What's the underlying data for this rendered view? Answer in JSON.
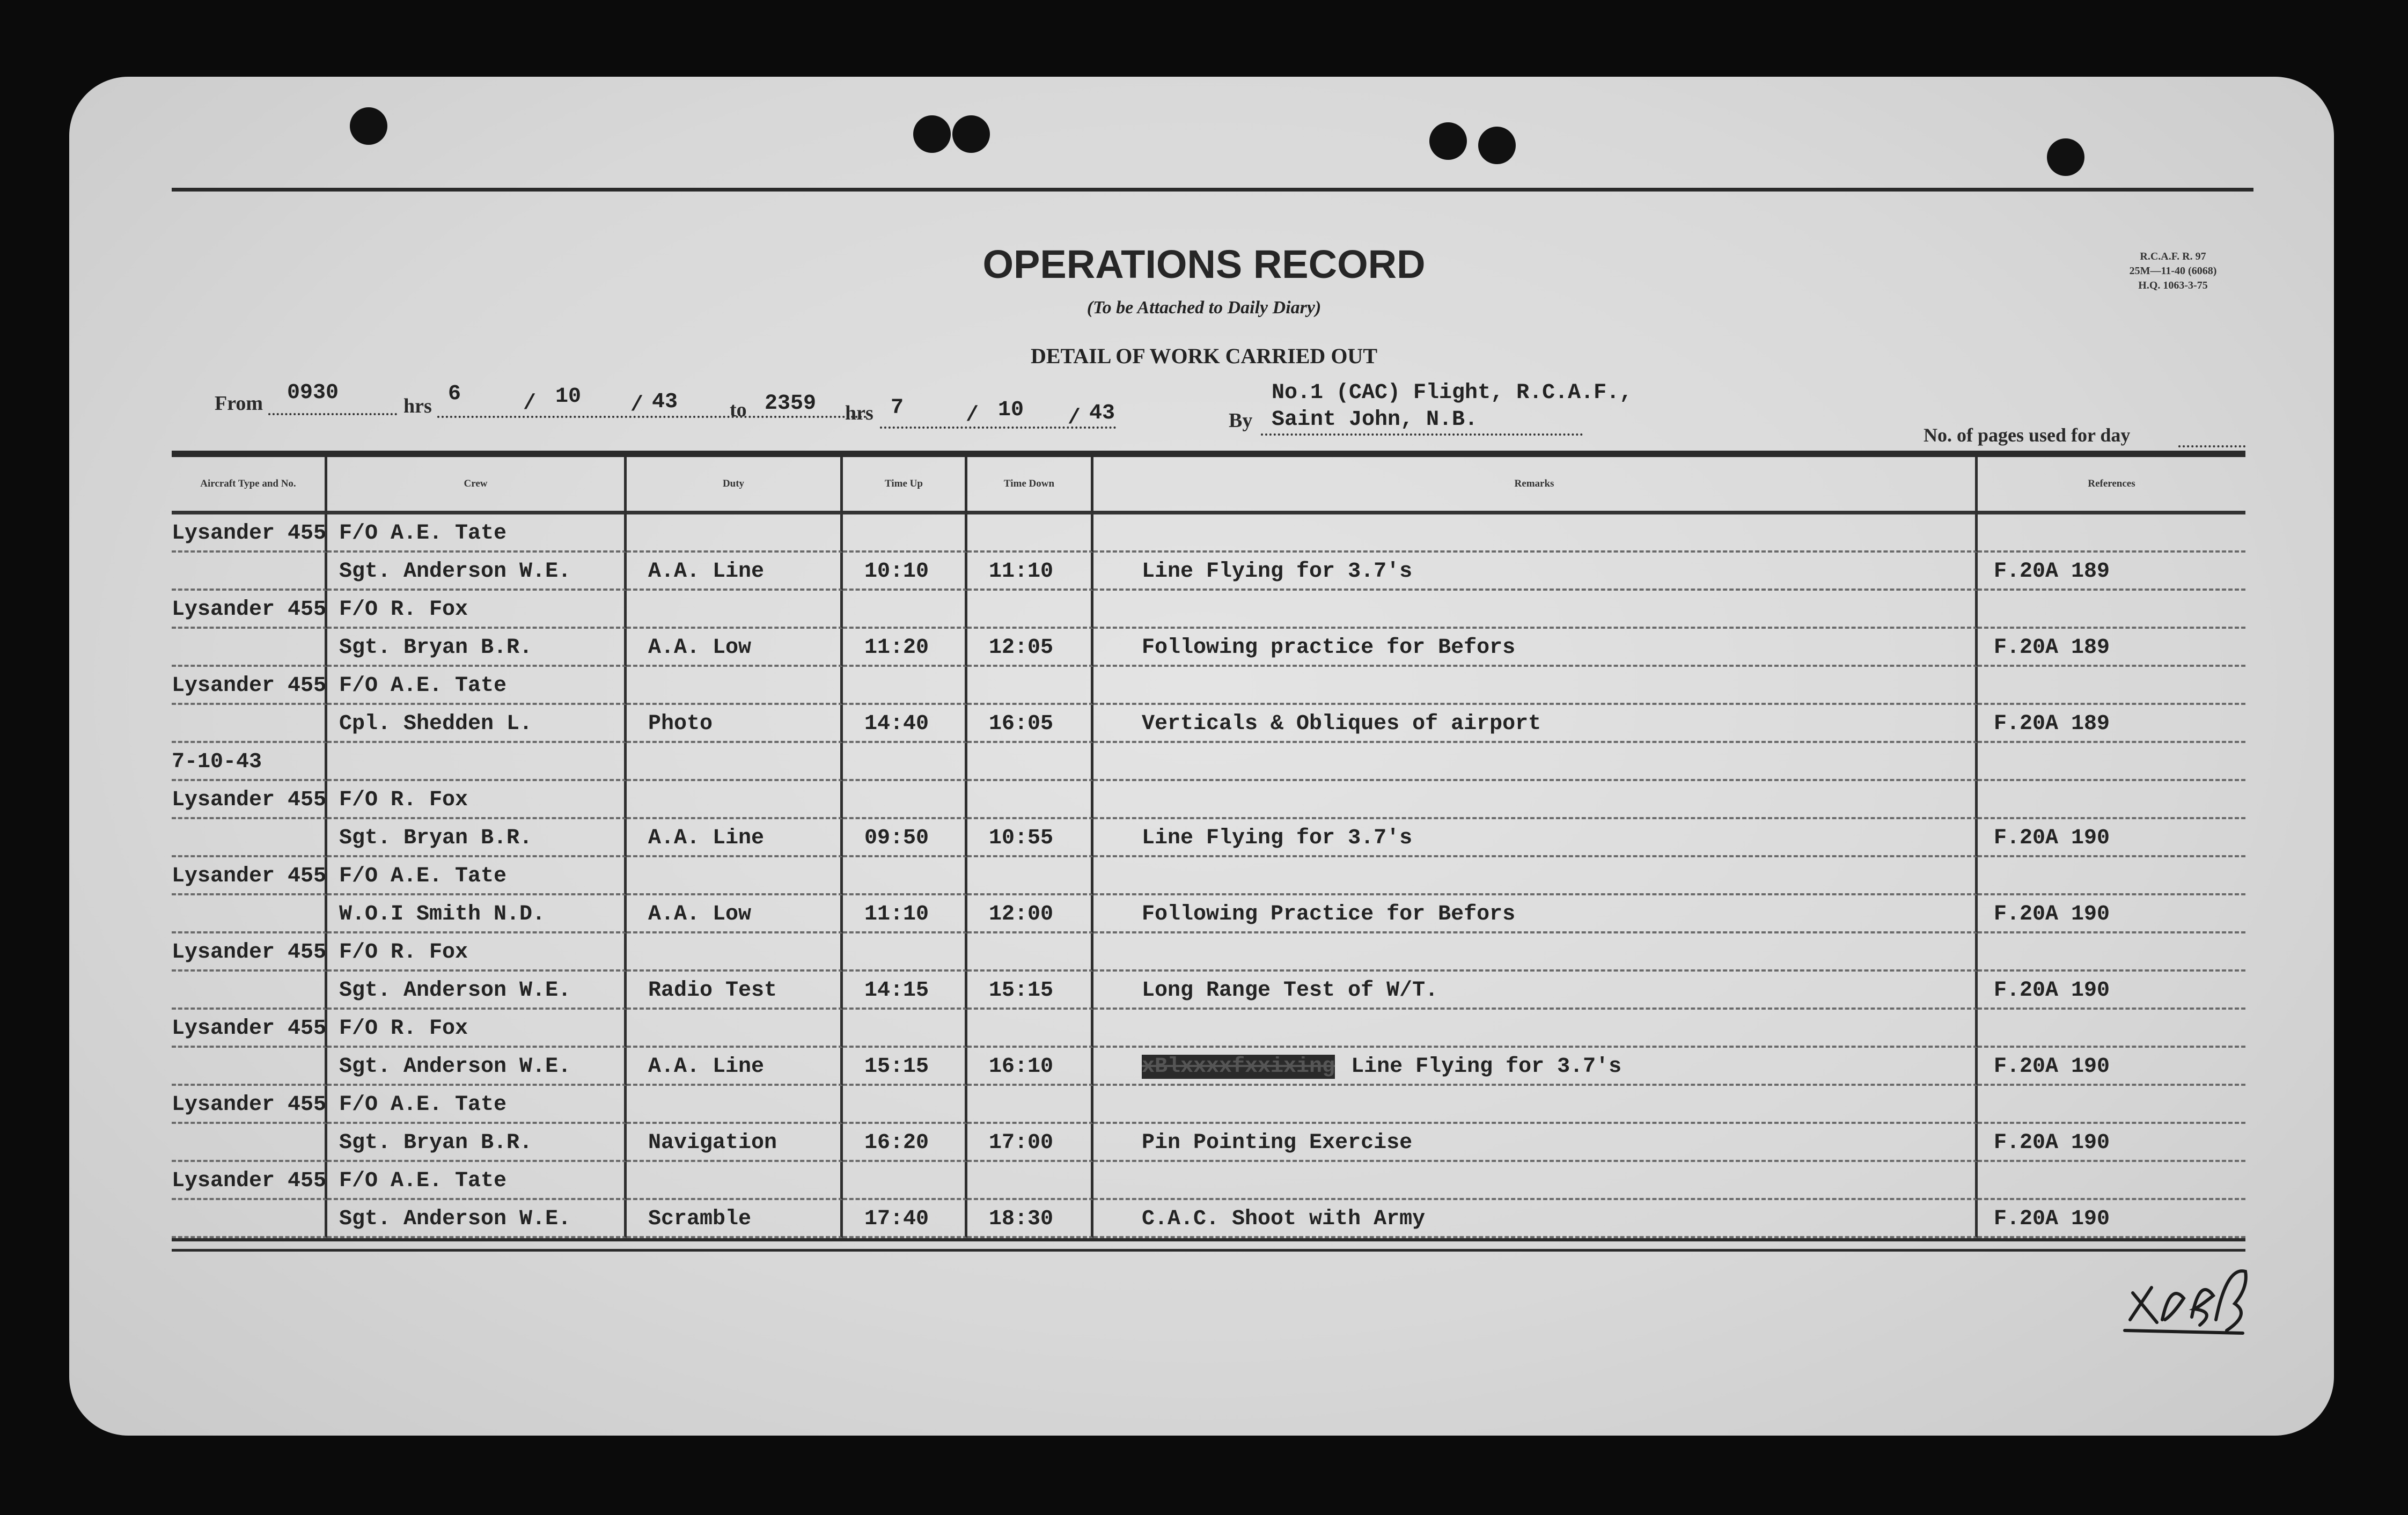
{
  "header": {
    "title": "OPERATIONS RECORD",
    "subtitle": "(To be Attached to Daily Diary)",
    "detail": "DETAIL OF WORK CARRIED OUT",
    "form_code": [
      "R.C.A.F. R. 97",
      "25M—11-40 (6068)",
      "H.Q. 1063-3-75"
    ],
    "from_label": "From",
    "from_time": "0930",
    "hrs_label": "hrs",
    "from_day": "6",
    "from_month": "10",
    "from_year": "43",
    "to_label": "to",
    "to_time": "2359",
    "to_day": "7",
    "to_month": "10",
    "to_year": "43",
    "unit": "No.1 (CAC) Flight, R.C.A.F.,",
    "by_label": "By",
    "by_value": "Saint John, N.B.",
    "pages_label": "No. of pages used for day"
  },
  "columns": [
    "Aircraft Type and No.",
    "Crew",
    "Duty",
    "Time Up",
    "Time Down",
    "Remarks",
    "References"
  ],
  "entries": [
    {
      "aircraft": "Lysander 455",
      "pilot": "F/O A.E. Tate",
      "crew": "Sgt. Anderson W.E.",
      "duty": "A.A. Line",
      "time_up": "10:10",
      "time_down": "11:10",
      "remarks": "Line Flying for 3.7's",
      "reference": "F.20A 189"
    },
    {
      "aircraft": "Lysander 455",
      "pilot": "F/O R. Fox",
      "crew": "Sgt. Bryan B.R.",
      "duty": "A.A. Low",
      "time_up": "11:20",
      "time_down": "12:05",
      "remarks": "Following practice for Befors",
      "reference": "F.20A 189"
    },
    {
      "aircraft": "Lysander 455",
      "pilot": "F/O A.E. Tate",
      "crew": "Cpl. Shedden L.",
      "duty": "Photo",
      "time_up": "14:40",
      "time_down": "16:05",
      "remarks": "Verticals & Obliques of airport",
      "reference": "F.20A 189"
    },
    {
      "date": "7-10-43"
    },
    {
      "aircraft": "Lysander 455",
      "pilot": "F/O R. Fox",
      "crew": "Sgt. Bryan B.R.",
      "duty": "A.A. Line",
      "time_up": "09:50",
      "time_down": "10:55",
      "remarks": "Line Flying for 3.7's",
      "reference": "F.20A 190"
    },
    {
      "aircraft": "Lysander 455",
      "pilot": "F/O A.E. Tate",
      "crew": "W.O.I Smith N.D.",
      "duty": "A.A. Low",
      "time_up": "11:10",
      "time_down": "12:00",
      "remarks": "Following Practice for Befors",
      "reference": "F.20A 190"
    },
    {
      "aircraft": "Lysander 455",
      "pilot": "F/O R. Fox",
      "crew": "Sgt. Anderson W.E.",
      "duty": "Radio Test",
      "time_up": "14:15",
      "time_down": "15:15",
      "remarks": "Long Range Test of W/T.",
      "reference": "F.20A 190"
    },
    {
      "aircraft": "Lysander 455",
      "pilot": "F/O R. Fox",
      "crew": "Sgt. Anderson W.E.",
      "duty": "A.A. Line",
      "time_up": "15:15",
      "time_down": "16:10",
      "struck": "xBlxxxxfxxixing",
      "remarks": "Line Flying for 3.7's",
      "reference": "F.20A 190"
    },
    {
      "aircraft": "Lysander 455",
      "pilot": "F/O A.E. Tate",
      "crew": "Sgt. Bryan B.R.",
      "duty": "Navigation",
      "time_up": "16:20",
      "time_down": "17:00",
      "remarks": "Pin Pointing Exercise",
      "reference": "F.20A 190"
    },
    {
      "aircraft": "Lysander 455",
      "pilot": "F/O A.E. Tate",
      "crew": "Sgt. Anderson W.E.",
      "duty": "Scramble",
      "time_up": "17:40",
      "time_down": "18:30",
      "remarks": "C.A.C. Shoot with Army",
      "reference": "F.20A 190"
    }
  ],
  "colors": {
    "background": "#0b0b0b",
    "paper": "#d8d8d8",
    "ink": "#232323"
  }
}
